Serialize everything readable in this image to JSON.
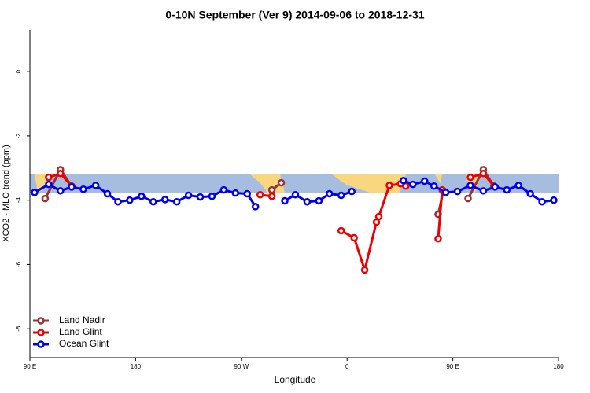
{
  "chart_data": {
    "type": "line",
    "title": "0-10N September (Ver 9)   2014-09-06 to 2018-12-31",
    "xlabel": "Longitude",
    "ylabel": "XCO2 - MLO trend (ppm)",
    "xlim": [
      90,
      540
    ],
    "ylim": [
      -8.9,
      1.3
    ],
    "xticks": [
      {
        "value": 90,
        "label": "90 E"
      },
      180,
      {
        "value": 270,
        "label": "90 W"
      },
      {
        "value": 360,
        "label": "0"
      },
      {
        "value": 450,
        "label": "90 E"
      },
      {
        "value": 540,
        "label": "180"
      }
    ],
    "yticks": [
      0,
      -2,
      -4,
      -6,
      -8
    ],
    "legend": "bottom-left",
    "series": [
      {
        "name": "Land Nadir",
        "color": "#993333",
        "x": [
          103,
          116,
          125.5,
          290,
          296,
          304,
          420,
          437.5,
          442,
          450,
          463,
          476,
          485
        ],
        "values": [
          -3.95,
          -3.05,
          -3.56,
          null,
          -3.68,
          -3.46,
          null,
          -4.44,
          -3.71,
          null,
          -3.95,
          -3.05,
          -3.56
        ]
      },
      {
        "name": "Land Glint",
        "color": "#ee0000",
        "x": [
          106,
          116,
          125.5,
          200,
          286,
          296,
          330,
          355,
          366,
          375,
          385,
          387,
          396,
          405.5,
          410,
          420,
          437.5,
          441,
          450,
          465,
          476,
          485
        ],
        "values": [
          -3.29,
          -3.17,
          -3.56,
          null,
          -3.83,
          -3.88,
          null,
          -4.95,
          -5.17,
          -6.17,
          -4.68,
          -4.51,
          -3.54,
          -3.49,
          -3.56,
          null,
          -5.2,
          -3.68,
          null,
          -3.29,
          -3.17,
          -3.56
        ]
      },
      {
        "name": "Ocean Glint",
        "color": "#0000ee",
        "x": [
          94,
          106,
          116,
          125.5,
          135.5,
          146,
          156,
          165,
          175,
          185,
          195,
          205,
          215,
          225,
          235,
          245,
          255,
          265,
          275,
          282,
          295,
          307,
          316,
          326,
          336,
          345,
          355,
          364,
          385,
          408,
          416,
          426,
          434,
          444,
          454,
          465,
          476,
          486,
          496,
          506,
          516,
          526,
          536
        ],
        "values": [
          -3.76,
          -3.51,
          -3.71,
          -3.59,
          -3.66,
          -3.54,
          -3.8,
          -4.05,
          -4.0,
          -3.88,
          -4.05,
          -3.98,
          -4.05,
          -3.85,
          -3.9,
          -3.88,
          -3.68,
          -3.78,
          -3.8,
          -4.2,
          null,
          -4.02,
          -3.83,
          -4.05,
          -4.02,
          -3.8,
          -3.85,
          -3.73,
          null,
          -3.39,
          -3.51,
          -3.41,
          -3.56,
          -3.76,
          -3.73,
          -3.54,
          -3.71,
          -3.59,
          -3.68,
          -3.54,
          -3.8,
          -4.05,
          -4.0
        ]
      }
    ]
  }
}
